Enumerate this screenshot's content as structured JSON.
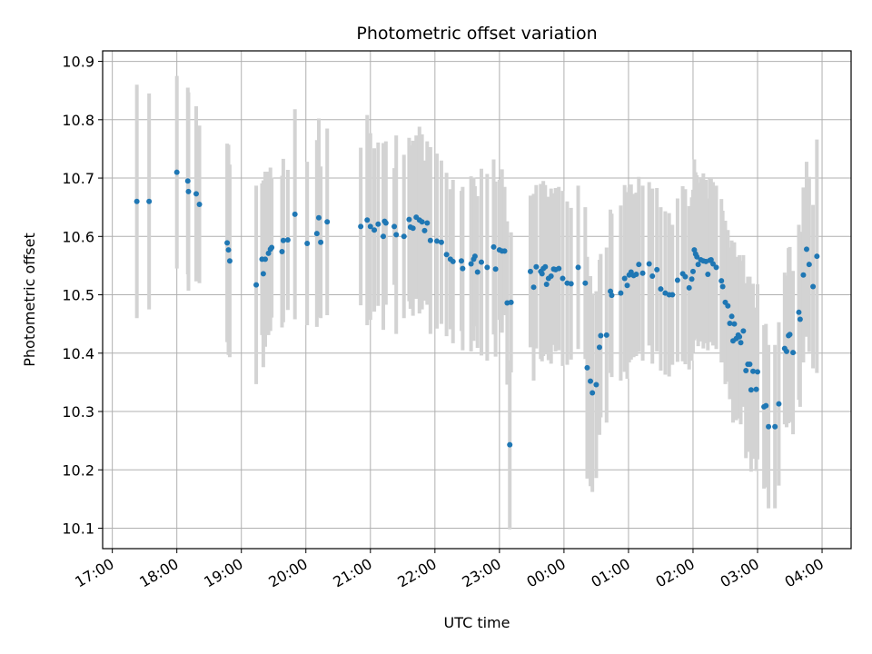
{
  "chart_data": {
    "type": "scatter",
    "title": "Photometric offset variation",
    "xlabel": "UTC time",
    "ylabel": "Photometric offset",
    "x_unit": "hour",
    "xlim": [
      16.85,
      28.45
    ],
    "ylim": [
      10.065,
      10.918
    ],
    "x_ticks": [
      {
        "v": 17,
        "label": "17:00"
      },
      {
        "v": 18,
        "label": "18:00"
      },
      {
        "v": 19,
        "label": "19:00"
      },
      {
        "v": 20,
        "label": "20:00"
      },
      {
        "v": 21,
        "label": "21:00"
      },
      {
        "v": 22,
        "label": "22:00"
      },
      {
        "v": 23,
        "label": "23:00"
      },
      {
        "v": 24,
        "label": "00:00"
      },
      {
        "v": 25,
        "label": "01:00"
      },
      {
        "v": 26,
        "label": "02:00"
      },
      {
        "v": 27,
        "label": "03:00"
      },
      {
        "v": 28,
        "label": "04:00"
      }
    ],
    "y_ticks": [
      {
        "v": 10.1,
        "label": "10.1"
      },
      {
        "v": 10.2,
        "label": "10.2"
      },
      {
        "v": 10.3,
        "label": "10.3"
      },
      {
        "v": 10.4,
        "label": "10.4"
      },
      {
        "v": 10.5,
        "label": "10.5"
      },
      {
        "v": 10.6,
        "label": "10.6"
      },
      {
        "v": 10.7,
        "label": "10.7"
      },
      {
        "v": 10.8,
        "label": "10.8"
      },
      {
        "v": 10.9,
        "label": "10.9"
      }
    ],
    "grid": true,
    "colors": {
      "points": "#1f77b4",
      "error_bars": "#d3d3d3",
      "grid": "#b0b0b0"
    },
    "points": [
      [
        17.38,
        10.66,
        0.2
      ],
      [
        17.57,
        10.66,
        0.185
      ],
      [
        18.0,
        10.71,
        0.165
      ],
      [
        18.17,
        10.695,
        0.16
      ],
      [
        18.18,
        10.677,
        0.17
      ],
      [
        18.3,
        10.673,
        0.15
      ],
      [
        18.35,
        10.655,
        0.135
      ],
      [
        18.78,
        10.589,
        0.17
      ],
      [
        18.8,
        10.577,
        0.18
      ],
      [
        18.82,
        10.558,
        0.165
      ],
      [
        19.23,
        10.517,
        0.17
      ],
      [
        19.32,
        10.561,
        0.13
      ],
      [
        19.34,
        10.536,
        0.16
      ],
      [
        19.37,
        10.561,
        0.15
      ],
      [
        19.42,
        10.571,
        0.14
      ],
      [
        19.45,
        10.578,
        0.14
      ],
      [
        19.47,
        10.581,
        0.12
      ],
      [
        19.63,
        10.574,
        0.13
      ],
      [
        19.65,
        10.593,
        0.14
      ],
      [
        19.72,
        10.594,
        0.12
      ],
      [
        19.83,
        10.638,
        0.18
      ],
      [
        20.02,
        10.588,
        0.14
      ],
      [
        20.17,
        10.605,
        0.16
      ],
      [
        20.2,
        10.632,
        0.17
      ],
      [
        20.23,
        10.59,
        0.13
      ],
      [
        20.33,
        10.625,
        0.16
      ],
      [
        20.85,
        10.617,
        0.135
      ],
      [
        20.95,
        10.628,
        0.18
      ],
      [
        21.0,
        10.617,
        0.16
      ],
      [
        21.06,
        10.611,
        0.14
      ],
      [
        21.12,
        10.621,
        0.14
      ],
      [
        21.2,
        10.6,
        0.16
      ],
      [
        21.22,
        10.626,
        0.12
      ],
      [
        21.24,
        10.623,
        0.14
      ],
      [
        21.37,
        10.617,
        0.1
      ],
      [
        21.4,
        10.603,
        0.17
      ],
      [
        21.52,
        10.6,
        0.14
      ],
      [
        21.6,
        10.629,
        0.14
      ],
      [
        21.62,
        10.616,
        0.14
      ],
      [
        21.66,
        10.614,
        0.15
      ],
      [
        21.71,
        10.633,
        0.14
      ],
      [
        21.76,
        10.628,
        0.16
      ],
      [
        21.8,
        10.625,
        0.15
      ],
      [
        21.84,
        10.61,
        0.12
      ],
      [
        21.88,
        10.623,
        0.14
      ],
      [
        21.93,
        10.593,
        0.16
      ],
      [
        22.03,
        10.592,
        0.15
      ],
      [
        22.1,
        10.59,
        0.14
      ],
      [
        22.18,
        10.569,
        0.14
      ],
      [
        22.24,
        10.561,
        0.12
      ],
      [
        22.28,
        10.557,
        0.14
      ],
      [
        22.41,
        10.558,
        0.12
      ],
      [
        22.43,
        10.545,
        0.14
      ],
      [
        22.56,
        10.553,
        0.15
      ],
      [
        22.6,
        10.561,
        0.14
      ],
      [
        22.62,
        10.566,
        0.12
      ],
      [
        22.66,
        10.539,
        0.13
      ],
      [
        22.72,
        10.556,
        0.16
      ],
      [
        22.81,
        10.547,
        0.16
      ],
      [
        22.91,
        10.582,
        0.15
      ],
      [
        22.94,
        10.544,
        0.15
      ],
      [
        23.0,
        10.577,
        0.12
      ],
      [
        23.04,
        10.575,
        0.14
      ],
      [
        23.08,
        10.575,
        0.11
      ],
      [
        23.12,
        10.486,
        0.14
      ],
      [
        23.18,
        10.487,
        0.12
      ],
      [
        23.16,
        10.243,
        0.145
      ],
      [
        23.48,
        10.54,
        0.13
      ],
      [
        23.53,
        10.513,
        0.16
      ],
      [
        23.57,
        10.548,
        0.14
      ],
      [
        23.64,
        10.54,
        0.15
      ],
      [
        23.66,
        10.536,
        0.15
      ],
      [
        23.68,
        10.545,
        0.15
      ],
      [
        23.71,
        10.548,
        0.14
      ],
      [
        23.73,
        10.518,
        0.12
      ],
      [
        23.76,
        10.528,
        0.14
      ],
      [
        23.8,
        10.532,
        0.15
      ],
      [
        23.84,
        10.544,
        0.13
      ],
      [
        23.87,
        10.543,
        0.14
      ],
      [
        23.92,
        10.545,
        0.14
      ],
      [
        23.98,
        10.528,
        0.15
      ],
      [
        24.05,
        10.52,
        0.14
      ],
      [
        24.11,
        10.519,
        0.13
      ],
      [
        24.22,
        10.547,
        0.14
      ],
      [
        24.33,
        10.52,
        0.13
      ],
      [
        24.36,
        10.375,
        0.19
      ],
      [
        24.41,
        10.352,
        0.18
      ],
      [
        24.44,
        10.332,
        0.17
      ],
      [
        24.5,
        10.346,
        0.16
      ],
      [
        24.55,
        10.41,
        0.15
      ],
      [
        24.57,
        10.43,
        0.14
      ],
      [
        24.66,
        10.431,
        0.15
      ],
      [
        24.72,
        10.506,
        0.14
      ],
      [
        24.74,
        10.499,
        0.14
      ],
      [
        24.88,
        10.503,
        0.15
      ],
      [
        24.94,
        10.528,
        0.16
      ],
      [
        24.98,
        10.516,
        0.16
      ],
      [
        25.01,
        10.534,
        0.15
      ],
      [
        25.04,
        10.539,
        0.15
      ],
      [
        25.08,
        10.533,
        0.14
      ],
      [
        25.12,
        10.535,
        0.14
      ],
      [
        25.16,
        10.552,
        0.15
      ],
      [
        25.22,
        10.537,
        0.15
      ],
      [
        25.32,
        10.553,
        0.14
      ],
      [
        25.37,
        10.532,
        0.15
      ],
      [
        25.44,
        10.543,
        0.14
      ],
      [
        25.5,
        10.51,
        0.14
      ],
      [
        25.57,
        10.503,
        0.14
      ],
      [
        25.63,
        10.5,
        0.14
      ],
      [
        25.68,
        10.5,
        0.12
      ],
      [
        25.76,
        10.525,
        0.14
      ],
      [
        25.84,
        10.536,
        0.15
      ],
      [
        25.88,
        10.531,
        0.15
      ],
      [
        25.94,
        10.512,
        0.14
      ],
      [
        25.98,
        10.527,
        0.14
      ],
      [
        26.0,
        10.54,
        0.14
      ],
      [
        26.02,
        10.577,
        0.155
      ],
      [
        26.04,
        10.57,
        0.14
      ],
      [
        26.06,
        10.565,
        0.14
      ],
      [
        26.08,
        10.552,
        0.14
      ],
      [
        26.12,
        10.56,
        0.14
      ],
      [
        26.16,
        10.558,
        0.15
      ],
      [
        26.2,
        10.557,
        0.14
      ],
      [
        26.23,
        10.535,
        0.13
      ],
      [
        26.26,
        10.559,
        0.14
      ],
      [
        26.28,
        10.56,
        0.14
      ],
      [
        26.31,
        10.553,
        0.14
      ],
      [
        26.36,
        10.547,
        0.14
      ],
      [
        26.44,
        10.524,
        0.14
      ],
      [
        26.46,
        10.514,
        0.13
      ],
      [
        26.5,
        10.487,
        0.14
      ],
      [
        26.54,
        10.481,
        0.13
      ],
      [
        26.57,
        10.451,
        0.13
      ],
      [
        26.6,
        10.463,
        0.13
      ],
      [
        26.62,
        10.421,
        0.14
      ],
      [
        26.64,
        10.45,
        0.14
      ],
      [
        26.67,
        10.425,
        0.14
      ],
      [
        26.7,
        10.431,
        0.13
      ],
      [
        26.72,
        10.428,
        0.14
      ],
      [
        26.74,
        10.418,
        0.14
      ],
      [
        26.78,
        10.438,
        0.13
      ],
      [
        26.82,
        10.37,
        0.15
      ],
      [
        26.85,
        10.381,
        0.15
      ],
      [
        26.88,
        10.381,
        0.15
      ],
      [
        26.9,
        10.337,
        0.14
      ],
      [
        26.93,
        10.369,
        0.15
      ],
      [
        26.98,
        10.338,
        0.14
      ],
      [
        27.0,
        10.368,
        0.15
      ],
      [
        27.1,
        10.308,
        0.14
      ],
      [
        27.13,
        10.31,
        0.14
      ],
      [
        27.17,
        10.274,
        0.14
      ],
      [
        27.27,
        10.274,
        0.14
      ],
      [
        27.33,
        10.313,
        0.14
      ],
      [
        27.42,
        10.408,
        0.13
      ],
      [
        27.45,
        10.403,
        0.13
      ],
      [
        27.48,
        10.43,
        0.15
      ],
      [
        27.5,
        10.432,
        0.15
      ],
      [
        27.55,
        10.401,
        0.14
      ],
      [
        27.64,
        10.47,
        0.15
      ],
      [
        27.66,
        10.458,
        0.15
      ],
      [
        27.71,
        10.534,
        0.15
      ],
      [
        27.76,
        10.578,
        0.15
      ],
      [
        27.8,
        10.552,
        0.15
      ],
      [
        27.86,
        10.514,
        0.14
      ],
      [
        27.92,
        10.566,
        0.2
      ]
    ]
  }
}
